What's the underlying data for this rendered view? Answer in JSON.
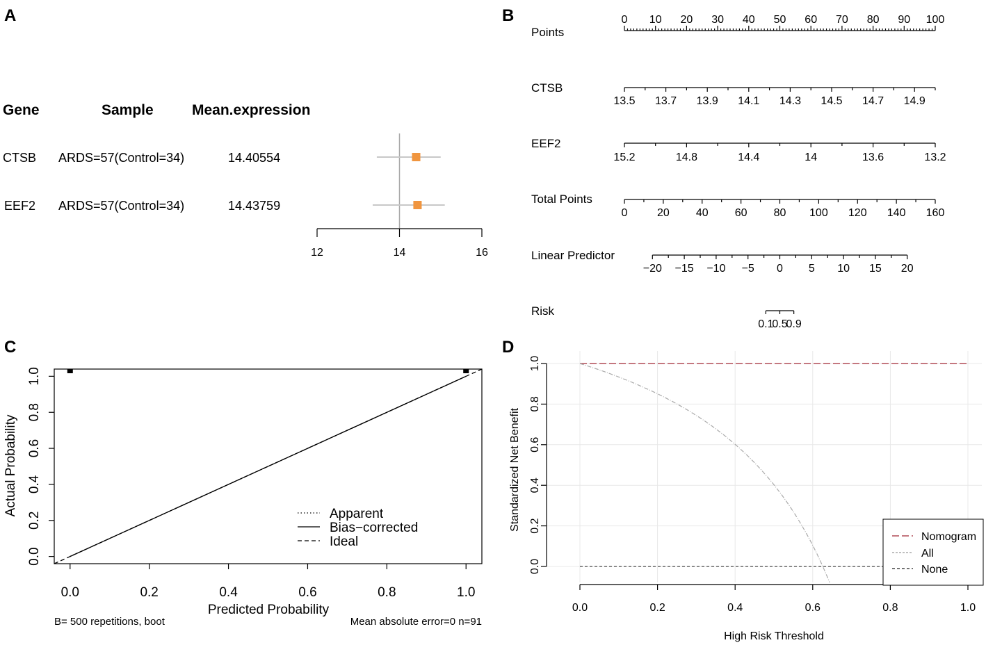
{
  "colors": {
    "forest_point": "#F0953F",
    "forest_ci": "#c8c8c8",
    "forest_ref": "#a8a8a8",
    "nomogram_line": "#B04A55",
    "all_line": "#aaaaaa",
    "none_line": "#444444",
    "grid": "#e8e8e8"
  },
  "panel_labels": {
    "a": "A",
    "b": "B",
    "c": "C",
    "d": "D"
  },
  "chart_data": [
    {
      "id": "A",
      "type": "forest",
      "headers": {
        "gene": "Gene",
        "sample": "Sample",
        "mean": "Mean.expression"
      },
      "rows": [
        {
          "gene": "CTSB",
          "sample": "ARDS=57(Control=34)",
          "mean_label": "14.40554",
          "mean": 14.40554,
          "ci_low": 13.45,
          "ci_high": 15.0
        },
        {
          "gene": "EEF2",
          "sample": "ARDS=57(Control=34)",
          "mean_label": "14.43759",
          "mean": 14.43759,
          "ci_low": 13.35,
          "ci_high": 15.1
        }
      ],
      "reference_line": 14,
      "xlim": [
        12,
        16
      ],
      "x_ticks": [
        12,
        14,
        16
      ],
      "x_tick_labels": [
        "12",
        "14",
        "16"
      ]
    },
    {
      "id": "B",
      "type": "nomogram",
      "points_range": [
        0,
        100
      ],
      "scales": [
        {
          "name": "Points",
          "kind": "points",
          "labels_above": true,
          "major": [
            0,
            10,
            20,
            30,
            40,
            50,
            60,
            70,
            80,
            90,
            100
          ],
          "labels": [
            "0",
            "10",
            "20",
            "30",
            "40",
            "50",
            "60",
            "70",
            "80",
            "90",
            "100"
          ],
          "minor_step": 1
        },
        {
          "name": "CTSB",
          "kind": "linear",
          "value_at_0": 13.5,
          "value_at_100": 15.0,
          "major": [
            13.5,
            13.7,
            13.9,
            14.1,
            14.3,
            14.5,
            14.7,
            14.9
          ],
          "labels": [
            "13.5",
            "13.7",
            "13.9",
            "14.1",
            "14.3",
            "14.5",
            "14.7",
            "14.9"
          ],
          "minor": [
            13.6,
            13.8,
            14.0,
            14.2,
            14.4,
            14.6,
            14.8,
            15.0
          ]
        },
        {
          "name": "EEF2",
          "kind": "linear",
          "value_at_0": 15.2,
          "value_at_100": 13.2,
          "major": [
            15.2,
            14.8,
            14.4,
            14.0,
            13.6,
            13.2
          ],
          "labels": [
            "15.2",
            "14.8",
            "14.4",
            "14",
            "13.6",
            "13.2"
          ],
          "minor": [
            15.0,
            14.6,
            14.2,
            13.8,
            13.4
          ]
        },
        {
          "name": "Total Points",
          "kind": "linear",
          "value_at_0": 0,
          "value_at_100": 160,
          "major": [
            0,
            20,
            40,
            60,
            80,
            100,
            120,
            140,
            160
          ],
          "labels": [
            "0",
            "20",
            "40",
            "60",
            "80",
            "100",
            "120",
            "140",
            "160"
          ],
          "minor": [
            10,
            30,
            50,
            70,
            90,
            110,
            130,
            150
          ]
        },
        {
          "name": "Linear Predictor",
          "kind": "linear",
          "value_at_0": -24.4,
          "value_at_100": 24.4,
          "major": [
            -20,
            -15,
            -10,
            -5,
            0,
            5,
            10,
            15,
            20
          ],
          "labels": [
            "−20",
            "−15",
            "−10",
            "−5",
            "0",
            "5",
            "10",
            "15",
            "20"
          ],
          "minor": [
            -17.5,
            -12.5,
            -7.5,
            -2.5,
            2.5,
            7.5,
            12.5,
            17.5
          ]
        },
        {
          "name": "Risk",
          "kind": "risk",
          "major": [
            0.1,
            0.5,
            0.9
          ],
          "labels": [
            "0.1",
            "0.5",
            "0.9"
          ],
          "major_lp": [
            -2.2,
            0,
            2.2
          ]
        }
      ]
    },
    {
      "id": "C",
      "type": "calibration",
      "xlabel": "Predicted Probability",
      "ylabel": "Actual Probability",
      "xlim": [
        -0.04,
        1.04
      ],
      "ylim": [
        -0.04,
        1.04
      ],
      "x_ticks": [
        0.0,
        0.2,
        0.4,
        0.6,
        0.8,
        1.0
      ],
      "x_tick_labels": [
        "0.0",
        "0.2",
        "0.4",
        "0.6",
        "0.8",
        "1.0"
      ],
      "y_ticks": [
        0.0,
        0.2,
        0.4,
        0.6,
        0.8,
        1.0
      ],
      "y_tick_labels": [
        "0.0",
        "0.2",
        "0.4",
        "0.6",
        "0.8",
        "1.0"
      ],
      "series": [
        {
          "name": "Apparent",
          "style": "dotted",
          "x": [
            0,
            1
          ],
          "y": [
            0,
            1
          ]
        },
        {
          "name": "Bias−corrected",
          "style": "solid",
          "x": [
            0,
            1
          ],
          "y": [
            0,
            1
          ]
        },
        {
          "name": "Ideal",
          "style": "dashed",
          "x": [
            -0.04,
            1.04
          ],
          "y": [
            -0.04,
            1.04
          ]
        }
      ],
      "rug_top": [
        0.0,
        1.0
      ],
      "footnote_left": "B= 500 repetitions, boot",
      "footnote_right": "Mean absolute error=0 n=91",
      "legend_position": "bottom-right"
    },
    {
      "id": "D",
      "type": "line",
      "xlabel": "High Risk Threshold",
      "ylabel": "Standardized Net Benefit",
      "xlim": [
        0,
        1
      ],
      "ylim": [
        -0.05,
        1.0
      ],
      "x_ticks": [
        0.0,
        0.2,
        0.4,
        0.6,
        0.8,
        1.0
      ],
      "x_tick_labels": [
        "0.0",
        "0.2",
        "0.4",
        "0.6",
        "0.8",
        "1.0"
      ],
      "y_ticks": [
        0.0,
        0.2,
        0.4,
        0.6,
        0.8,
        1.0
      ],
      "y_tick_labels": [
        "0.0",
        "0.2",
        "0.4",
        "0.6",
        "0.8",
        "1.0"
      ],
      "series": [
        {
          "name": "Nomogram",
          "style": "longdash",
          "x": [
            0,
            1
          ],
          "y": [
            1,
            1
          ]
        },
        {
          "name": "All",
          "style": "dotdash",
          "prevalence": 0.626
        },
        {
          "name": "None",
          "style": "dashed",
          "x": [
            0,
            1
          ],
          "y": [
            0,
            0
          ]
        }
      ],
      "grid": true,
      "legend_position": "bottom-right"
    }
  ]
}
